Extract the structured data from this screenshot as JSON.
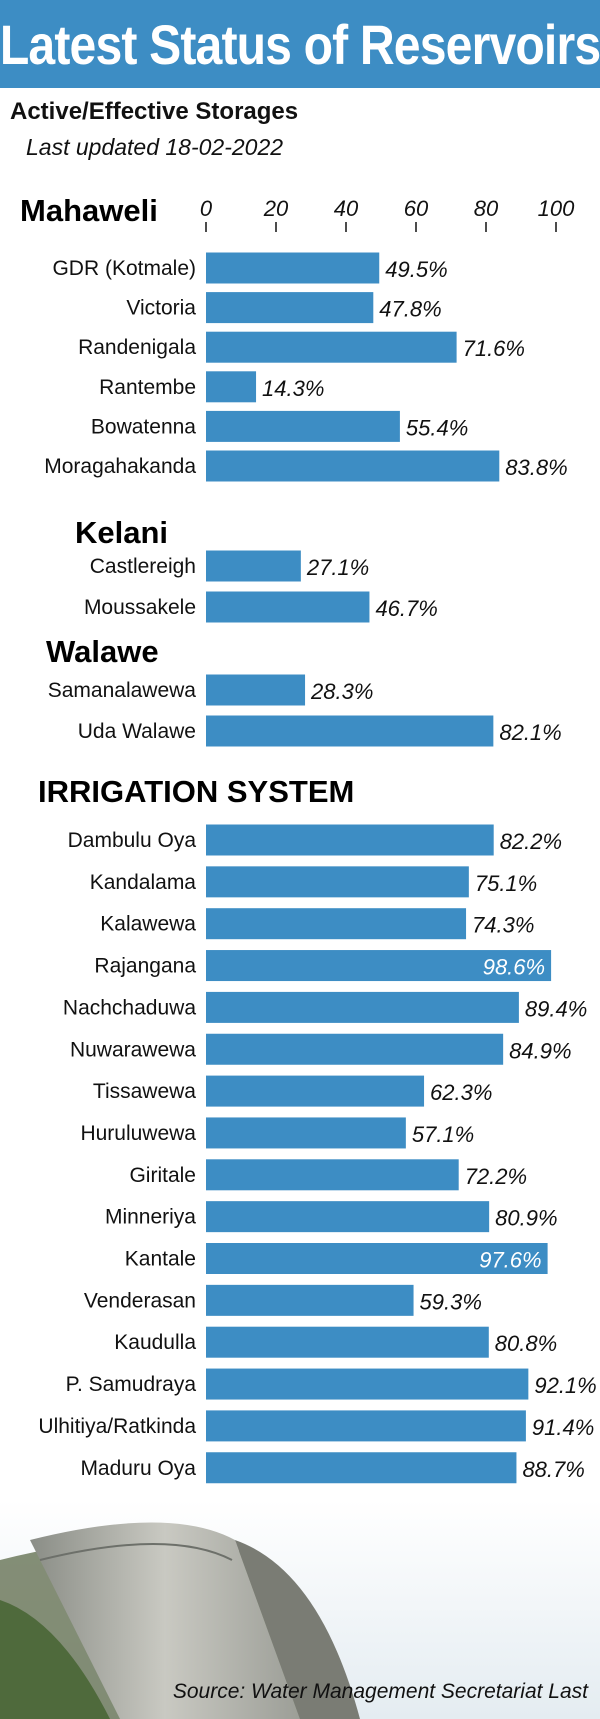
{
  "header": {
    "title": "Latest Status of Reservoirs",
    "subtitle": "Active/Effective Storages",
    "updated": "Last updated 18-02-2022"
  },
  "footer": {
    "source": "Source: Water Management Secretariat Last"
  },
  "colors": {
    "accent": "#3d8dc4",
    "value_text": "#111111",
    "value_text_inside": "#ffffff"
  },
  "chart_data": {
    "type": "bar",
    "orientation": "horizontal",
    "xlim": [
      0,
      100
    ],
    "ticks": [
      0,
      20,
      40,
      60,
      80,
      100
    ],
    "value_suffix": "%",
    "groups": [
      {
        "name": "Mahaweli",
        "categories": [
          "GDR (Kotmale)",
          "Victoria",
          "Randenigala",
          "Rantembe",
          "Bowatenna",
          "Moragahakanda"
        ],
        "values": [
          49.5,
          47.8,
          71.6,
          14.3,
          55.4,
          83.8
        ]
      },
      {
        "name": "Kelani",
        "categories": [
          "Castlereigh",
          "Moussakele"
        ],
        "values": [
          27.1,
          46.7
        ]
      },
      {
        "name": "Walawe",
        "categories": [
          "Samanalawewa",
          "Uda Walawe"
        ],
        "values": [
          28.3,
          82.1
        ]
      },
      {
        "name": "IRRIGATION SYSTEM",
        "categories": [
          "Dambulu Oya",
          "Kandalama",
          "Kalawewa",
          "Rajangana",
          "Nachchaduwa",
          "Nuwarawewa",
          "Tissawewa",
          "Huruluwewa",
          "Giritale",
          "Minneriya",
          "Kantale",
          "Venderasan",
          "Kaudulla",
          "P. Samudraya",
          "Ulhitiya/Ratkinda",
          "Maduru Oya"
        ],
        "values": [
          82.2,
          75.1,
          74.3,
          98.6,
          89.4,
          84.9,
          62.3,
          57.1,
          72.2,
          80.9,
          97.6,
          59.3,
          80.8,
          92.1,
          91.4,
          88.7
        ]
      }
    ]
  }
}
